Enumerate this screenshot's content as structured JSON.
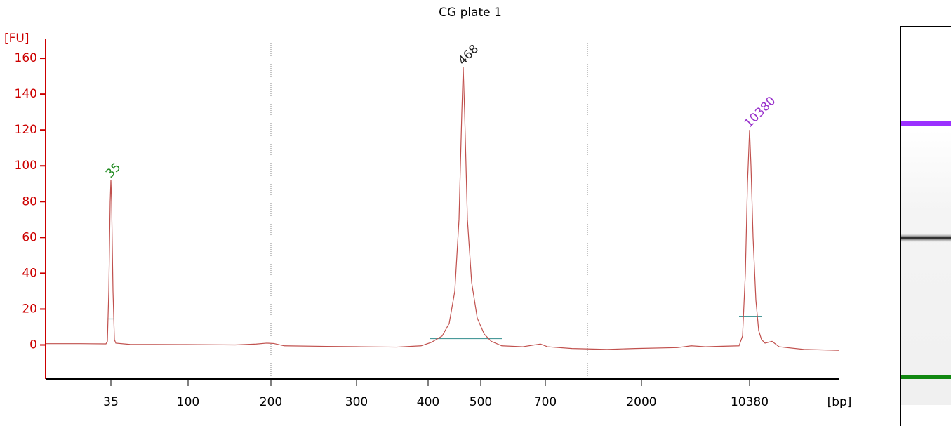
{
  "chart_data": {
    "type": "line",
    "title": "CG plate 1",
    "ylabel": "[FU]",
    "xlabel": "[bp]",
    "color": "#c0504d",
    "axis_color": "#cc0000",
    "ylim": [
      -19,
      171
    ],
    "yticks": [
      0,
      20,
      40,
      60,
      80,
      100,
      120,
      140,
      160
    ],
    "xlim": [
      0,
      113
    ],
    "xticks": [
      {
        "value": 9.3,
        "label": "35"
      },
      {
        "value": 20.3,
        "label": "100"
      },
      {
        "value": 32.1,
        "label": "200"
      },
      {
        "value": 44.3,
        "label": "300"
      },
      {
        "value": 54.5,
        "label": "400"
      },
      {
        "value": 62.0,
        "label": "500"
      },
      {
        "value": 71.2,
        "label": "700"
      },
      {
        "value": 84.9,
        "label": "2000"
      },
      {
        "value": 100.3,
        "label": "10380"
      }
    ],
    "marker_lines": [
      32.1,
      77.2
    ],
    "trace": {
      "x": [
        0,
        5,
        8.6,
        8.8,
        9.0,
        9.2,
        9.3,
        9.4,
        9.6,
        9.8,
        10.0,
        12,
        20,
        27,
        30,
        31.5,
        32.5,
        34,
        40,
        45,
        50,
        53.5,
        55,
        56.5,
        57.5,
        58.3,
        58.9,
        59.3,
        59.5,
        59.7,
        60.1,
        60.7,
        61.5,
        62.5,
        63.5,
        65,
        68,
        70.5,
        71.5,
        75,
        78,
        80,
        84,
        90,
        92,
        94,
        98.8,
        99.3,
        99.7,
        100,
        100.3,
        100.5,
        100.8,
        101.2,
        101.6,
        102,
        102.5,
        103.5,
        104.5,
        108,
        113
      ],
      "y": [
        0.7,
        0.7,
        0.6,
        2,
        30,
        80,
        92,
        80,
        30,
        3,
        1,
        0.3,
        0.2,
        0,
        0.5,
        1,
        0.8,
        -0.5,
        -0.8,
        -1,
        -1.2,
        -0.5,
        1.5,
        5,
        12,
        30,
        70,
        130,
        155,
        130,
        70,
        35,
        15,
        6,
        2,
        -0.5,
        -1,
        0.5,
        -1,
        -2,
        -2.3,
        -2.5,
        -2,
        -1.5,
        -0.5,
        -1,
        -0.5,
        5,
        40,
        90,
        120,
        100,
        60,
        25,
        8,
        3,
        1,
        2,
        -1,
        -2.5,
        -3
      ]
    },
    "peaks": [
      {
        "label": "35",
        "x": 9.3,
        "height": 92,
        "color": "#228b22",
        "start": 8.7,
        "end": 9.8,
        "level": 14.5
      },
      {
        "label": "468",
        "x": 59.5,
        "height": 155,
        "color": "#222222",
        "start": 54.7,
        "end": 65.0,
        "level": 3.5
      },
      {
        "label": "10380",
        "x": 100.3,
        "height": 120,
        "color": "#9932cc",
        "start": 98.8,
        "end": 102.1,
        "level": 16
      }
    ]
  }
}
